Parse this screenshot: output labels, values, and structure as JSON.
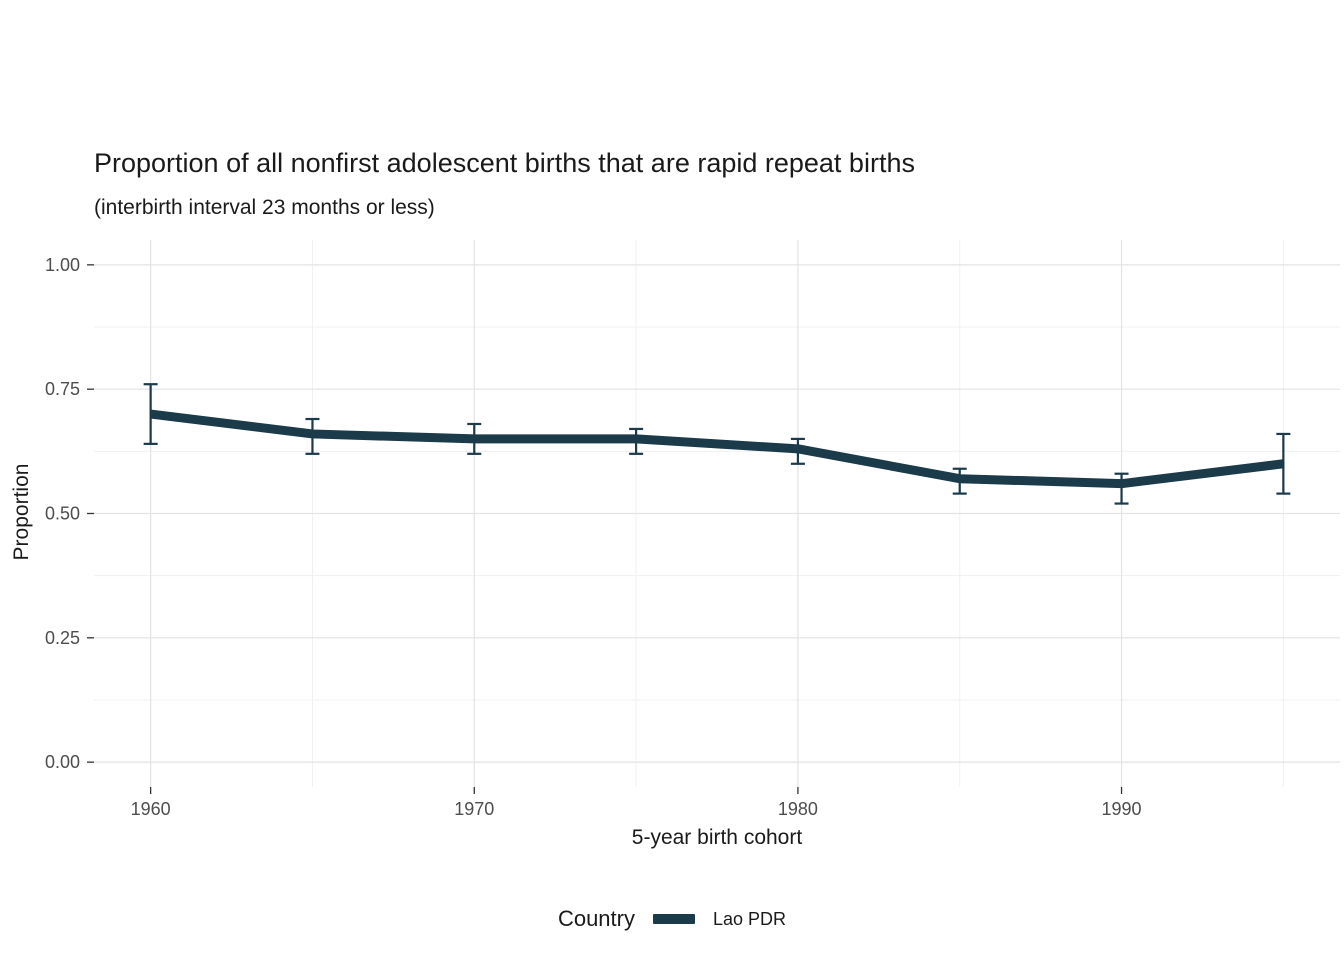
{
  "chart_data": {
    "type": "line",
    "title": "Proportion of all nonfirst adolescent births that are rapid repeat births",
    "subtitle": "(interbirth interval 23 months or less)",
    "xlabel": "5-year birth cohort",
    "ylabel": "Proportion",
    "x": [
      1960,
      1965,
      1970,
      1975,
      1980,
      1985,
      1990,
      1995
    ],
    "series": [
      {
        "name": "Lao PDR",
        "color": "#1b3a4a",
        "values": [
          0.7,
          0.66,
          0.65,
          0.65,
          0.63,
          0.57,
          0.56,
          0.6
        ],
        "lower": [
          0.64,
          0.62,
          0.62,
          0.62,
          0.6,
          0.54,
          0.52,
          0.54
        ],
        "upper": [
          0.76,
          0.69,
          0.68,
          0.67,
          0.65,
          0.59,
          0.58,
          0.66
        ]
      }
    ],
    "xlim": [
      1960,
      1995
    ],
    "ylim": [
      0,
      1
    ],
    "x_ticks": {
      "values": [
        1960,
        1970,
        1980,
        1990
      ],
      "labels": [
        "1960",
        "1970",
        "1980",
        "1990"
      ]
    },
    "y_ticks": {
      "values": [
        0,
        0.25,
        0.5,
        0.75,
        1
      ],
      "labels": [
        "0.00",
        "0.25",
        "0.50",
        "0.75",
        "1.00"
      ]
    },
    "x_minor": [
      1965,
      1975,
      1985,
      1995
    ],
    "y_minor": [
      0.125,
      0.375,
      0.625,
      0.875
    ],
    "grid": true,
    "legend_position": "bottom",
    "legend": {
      "title": "Country",
      "entries": [
        {
          "label": "Lao PDR",
          "color": "#1b3a4a"
        }
      ]
    },
    "colors": {
      "major_grid": "#e3e3e3",
      "minor_grid": "#f0f0f0",
      "tick_mark": "#333333",
      "tick_label": "#4d4d4d"
    }
  }
}
